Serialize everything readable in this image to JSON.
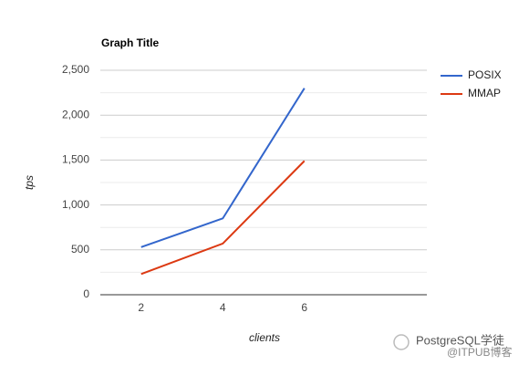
{
  "chart_data": {
    "type": "line",
    "title": "Graph Title",
    "x_label": "clients",
    "y_label": "tps",
    "x": [
      2,
      4,
      6
    ],
    "series": [
      {
        "name": "POSIX",
        "color": "#3366cc",
        "values": [
          530,
          850,
          2300
        ]
      },
      {
        "name": "MMAP",
        "color": "#dc3912",
        "values": [
          230,
          570,
          1490
        ]
      }
    ],
    "xlim": [
      1,
      9
    ],
    "xticks": [
      2,
      4,
      6
    ],
    "ylim": [
      0,
      2500
    ],
    "yticks": [
      0,
      500,
      {
        "value": 1000,
        "label": "1,000"
      },
      {
        "value": 1500,
        "label": "1,500"
      },
      {
        "value": 2000,
        "label": "2,000"
      },
      {
        "value": 2500,
        "label": "2,500"
      }
    ],
    "minor_yticks": [
      250,
      750,
      1250,
      1750,
      2250
    ],
    "grid": true,
    "legend": "right"
  },
  "watermark": {
    "account": "PostgreSQL学徒",
    "source": "@ITPUB博客"
  }
}
